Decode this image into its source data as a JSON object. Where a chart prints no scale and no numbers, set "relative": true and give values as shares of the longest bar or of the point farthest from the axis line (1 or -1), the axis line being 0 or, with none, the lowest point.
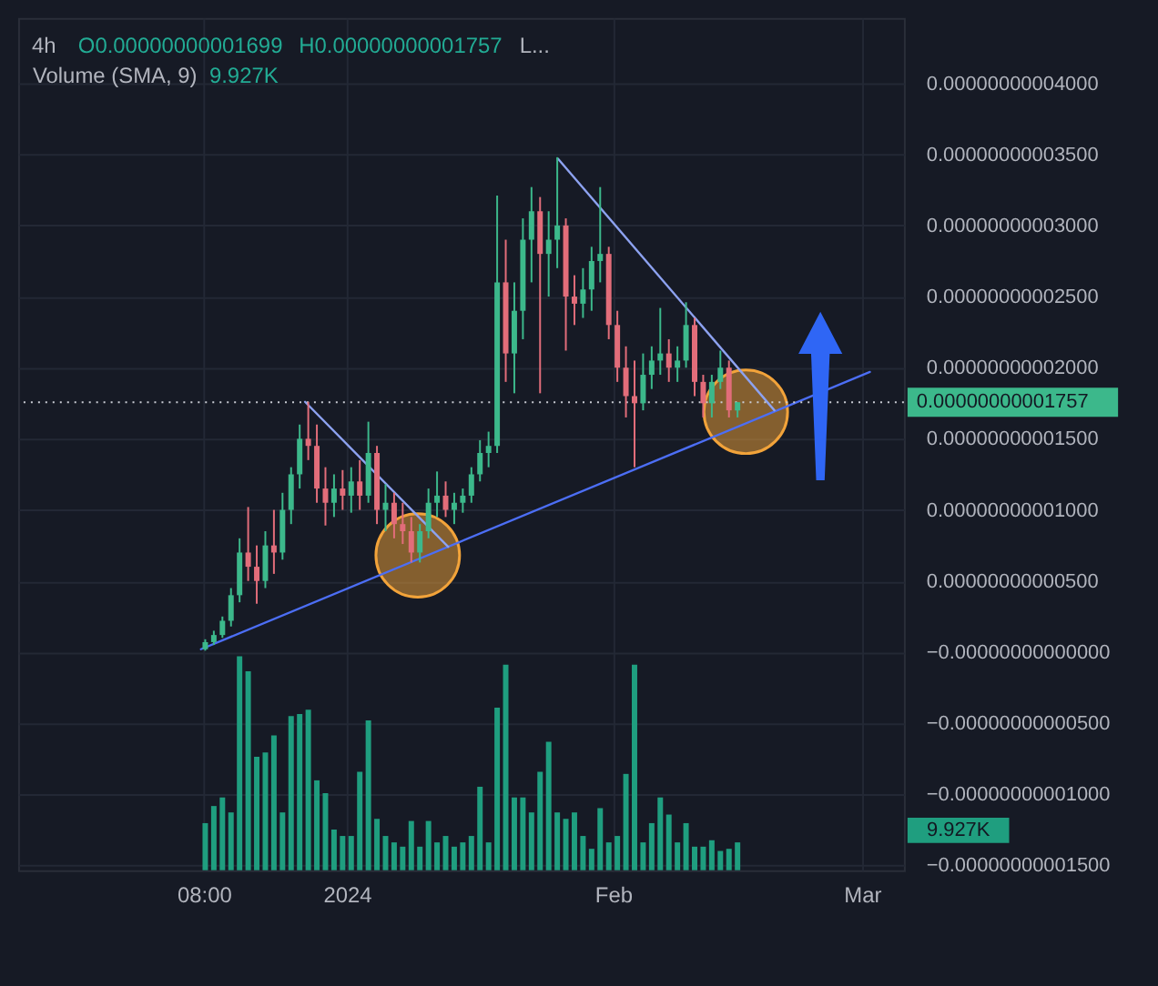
{
  "chart_data": [
    {
      "type": "candlestick",
      "title": "4h",
      "annotations": [
        "O0.00000000001699",
        "H0.00000000001757",
        "L...",
        "Volume (SMA, 9)",
        "9.927K"
      ],
      "x": [
        "2023-12-15T12:00",
        "2023-12-16T12:00",
        "2023-12-17T12:00",
        "2023-12-18T12:00",
        "2023-12-19T12:00",
        "2023-12-20T12:00",
        "2023-12-21T12:00",
        "2023-12-22T12:00",
        "2023-12-23T12:00",
        "2023-12-24T12:00",
        "2023-12-25T12:00",
        "2023-12-26T12:00",
        "2023-12-27T12:00",
        "2023-12-28T12:00",
        "2023-12-29T12:00",
        "2023-12-30T12:00",
        "2023-12-31T12:00",
        "2024-01-01T12:00",
        "2024-01-02T12:00",
        "2024-01-03T12:00",
        "2024-01-04T12:00",
        "2024-01-05T12:00",
        "2024-01-06T12:00",
        "2024-01-07T12:00",
        "2024-01-08T12:00",
        "2024-01-09T12:00",
        "2024-01-10T12:00",
        "2024-01-11T12:00",
        "2024-01-12T12:00",
        "2024-01-13T12:00",
        "2024-01-14T12:00",
        "2024-01-15T12:00",
        "2024-01-16T12:00",
        "2024-01-17T12:00",
        "2024-01-18T12:00",
        "2024-01-19T12:00",
        "2024-01-20T12:00",
        "2024-01-21T12:00",
        "2024-01-22T12:00",
        "2024-01-23T12:00",
        "2024-01-24T12:00",
        "2024-01-25T12:00",
        "2024-01-26T12:00",
        "2024-01-27T12:00",
        "2024-01-28T12:00",
        "2024-01-29T12:00",
        "2024-01-30T12:00",
        "2024-01-31T12:00",
        "2024-02-01T12:00",
        "2024-02-02T12:00",
        "2024-02-03T12:00",
        "2024-02-04T12:00",
        "2024-02-05T12:00",
        "2024-02-06T12:00",
        "2024-02-07T12:00",
        "2024-02-08T12:00",
        "2024-02-09T12:00",
        "2024-02-10T12:00",
        "2024-02-11T12:00",
        "2024-02-12T12:00",
        "2024-02-13T12:00",
        "2024-02-14T12:00",
        "2024-02-15T12:00"
      ],
      "ohlc": [
        [
          2e-13,
          9e-13,
          1e-13,
          7e-13
        ],
        [
          7e-13,
          1.5e-12,
          5e-13,
          1.2e-12
        ],
        [
          1.2e-12,
          2.5e-12,
          1e-12,
          2.2e-12
        ],
        [
          2.2e-12,
          4.5e-12,
          1.8e-12,
          4e-12
        ],
        [
          4e-12,
          8e-12,
          3.5e-12,
          7e-12
        ],
        [
          7e-12,
          1.02e-11,
          5e-12,
          6e-12
        ],
        [
          6e-12,
          7.5e-12,
          3.4e-12,
          5e-12
        ],
        [
          5e-12,
          8.5e-12,
          4.5e-12,
          7.5e-12
        ],
        [
          7.5e-12,
          1e-11,
          5.5e-12,
          7e-12
        ],
        [
          7e-12,
          1.12e-11,
          6.5e-12,
          1e-11
        ],
        [
          1e-11,
          1.3e-11,
          9e-12,
          1.25e-11
        ],
        [
          1.25e-11,
          1.6e-11,
          1.15e-11,
          1.5e-11
        ],
        [
          1.5e-11,
          1.76e-11,
          1.35e-11,
          1.45e-11
        ],
        [
          1.45e-11,
          1.6e-11,
          1.05e-11,
          1.15e-11
        ],
        [
          1.15e-11,
          1.3e-11,
          8.9e-12,
          1.05e-11
        ],
        [
          1.05e-11,
          1.25e-11,
          9.5e-12,
          1.15e-11
        ],
        [
          1.15e-11,
          1.28e-11,
          1e-11,
          1.1e-11
        ],
        [
          1.1e-11,
          1.3e-11,
          9.8e-12,
          1.2e-11
        ],
        [
          1.2e-11,
          1.35e-11,
          1e-11,
          1.1e-11
        ],
        [
          1.1e-11,
          1.62e-11,
          1.05e-11,
          1.4e-11
        ],
        [
          1.4e-11,
          1.45e-11,
          9e-12,
          1e-11
        ],
        [
          1e-11,
          1.18e-11,
          8.5e-12,
          1.05e-11
        ],
        [
          1.05e-11,
          1.12e-11,
          8e-12,
          9e-12
        ],
        [
          9e-12,
          1.05e-11,
          7.6e-12,
          8.5e-12
        ],
        [
          8.5e-12,
          9.5e-12,
          6.3e-12,
          7e-12
        ],
        [
          7e-12,
          9e-12,
          6.3e-12,
          8.5e-12
        ],
        [
          8.5e-12,
          1.15e-11,
          8e-12,
          1.05e-11
        ],
        [
          1.05e-11,
          1.27e-11,
          9.5e-12,
          1.1e-11
        ],
        [
          1.1e-11,
          1.2e-11,
          9.5e-12,
          1e-11
        ],
        [
          1e-11,
          1.12e-11,
          9e-12,
          1.05e-11
        ],
        [
          1.05e-11,
          1.15e-11,
          9.8e-12,
          1.1e-11
        ],
        [
          1.1e-11,
          1.3e-11,
          1.05e-11,
          1.25e-11
        ],
        [
          1.25e-11,
          1.49e-11,
          1.2e-11,
          1.4e-11
        ],
        [
          1.4e-11,
          1.55e-11,
          1.3e-11,
          1.45e-11
        ],
        [
          1.45e-11,
          3.21e-11,
          1.4e-11,
          2.6e-11
        ],
        [
          2.6e-11,
          2.9e-11,
          1.9e-11,
          2.1e-11
        ],
        [
          2.1e-11,
          2.6e-11,
          1.82e-11,
          2.4e-11
        ],
        [
          2.4e-11,
          3.05e-11,
          2.2e-11,
          2.9e-11
        ],
        [
          2.9e-11,
          3.27e-11,
          2.6e-11,
          3.1e-11
        ],
        [
          3.1e-11,
          3.2e-11,
          1.82e-11,
          2.8e-11
        ],
        [
          2.8e-11,
          3.1e-11,
          2.5e-11,
          2.9e-11
        ],
        [
          2.9e-11,
          3.48e-11,
          2.7e-11,
          3e-11
        ],
        [
          3e-11,
          3.05e-11,
          2.12e-11,
          2.5e-11
        ],
        [
          2.5e-11,
          2.65e-11,
          2.3e-11,
          2.45e-11
        ],
        [
          2.45e-11,
          2.7e-11,
          2.35e-11,
          2.55e-11
        ],
        [
          2.55e-11,
          2.85e-11,
          2.4e-11,
          2.75e-11
        ],
        [
          2.75e-11,
          3.27e-11,
          2.6e-11,
          2.8e-11
        ],
        [
          2.8e-11,
          2.85e-11,
          2.2e-11,
          2.3e-11
        ],
        [
          2.3e-11,
          2.4e-11,
          1.9e-11,
          2e-11
        ],
        [
          2e-11,
          2.15e-11,
          1.65e-11,
          1.8e-11
        ],
        [
          1.8e-11,
          2.05e-11,
          1.3e-11,
          1.75e-11
        ],
        [
          1.75e-11,
          2.1e-11,
          1.7e-11,
          1.95e-11
        ],
        [
          1.95e-11,
          2.15e-11,
          1.85e-11,
          2.05e-11
        ],
        [
          2.05e-11,
          2.42e-11,
          1.95e-11,
          2.1e-11
        ],
        [
          2.1e-11,
          2.2e-11,
          1.9e-11,
          2e-11
        ],
        [
          2e-11,
          2.15e-11,
          1.9e-11,
          2.05e-11
        ],
        [
          2.05e-11,
          2.46e-11,
          2e-11,
          2.3e-11
        ],
        [
          2.3e-11,
          2.35e-11,
          1.8e-11,
          1.9e-11
        ],
        [
          1.9e-11,
          1.95e-11,
          1.65e-11,
          1.75e-11
        ],
        [
          1.75e-11,
          1.95e-11,
          1.65e-11,
          1.9e-11
        ],
        [
          1.9e-11,
          2.12e-11,
          1.85e-11,
          2e-11
        ],
        [
          2e-11,
          2.05e-11,
          1.65e-11,
          1.7e-11
        ],
        [
          1.699e-11,
          1.757e-11,
          1.65e-11,
          1.757e-11
        ]
      ],
      "colors": [
        "#3cb88b",
        "#3cb88b",
        "#3cb88b",
        "#3cb88b",
        "#3cb88b",
        "#e26d7a",
        "#e26d7a",
        "#3cb88b",
        "#e26d7a",
        "#3cb88b",
        "#3cb88b",
        "#3cb88b",
        "#e26d7a",
        "#e26d7a",
        "#e26d7a",
        "#3cb88b",
        "#e26d7a",
        "#3cb88b",
        "#e26d7a",
        "#3cb88b",
        "#e26d7a",
        "#3cb88b",
        "#e26d7a",
        "#e26d7a",
        "#e26d7a",
        "#3cb88b",
        "#3cb88b",
        "#3cb88b",
        "#e26d7a",
        "#3cb88b",
        "#3cb88b",
        "#3cb88b",
        "#3cb88b",
        "#3cb88b",
        "#3cb88b",
        "#e26d7a",
        "#3cb88b",
        "#3cb88b",
        "#3cb88b",
        "#e26d7a",
        "#3cb88b",
        "#3cb88b",
        "#e26d7a",
        "#e26d7a",
        "#3cb88b",
        "#3cb88b",
        "#3cb88b",
        "#e26d7a",
        "#e26d7a",
        "#e26d7a",
        "#e26d7a",
        "#3cb88b",
        "#3cb88b",
        "#3cb88b",
        "#e26d7a",
        "#3cb88b",
        "#3cb88b",
        "#e26d7a",
        "#e26d7a",
        "#3cb88b",
        "#3cb88b",
        "#e26d7a",
        "#3cb88b"
      ],
      "xlim": [
        "2023-11-23T17:00",
        "2024-03-05T21:00"
      ],
      "xticks": [
        {
          "value": "2023-12-15T08:00",
          "label": null
        },
        {
          "value": "2024-01-01",
          "label": null
        },
        {
          "value": "2024-02-01",
          "label": null
        },
        {
          "value": "2024-03-01",
          "label": null
        }
      ],
      "tick_labels": "y",
      "ylim": [
        -1.534e-11,
        4.46e-11
      ],
      "yticks": [
        {
          "value": 4e-11,
          "label": "0.00000000004000"
        },
        {
          "value": 3.5e-11,
          "label": "0.00000000003500"
        },
        {
          "value": 3e-11,
          "label": "0.00000000003000"
        },
        {
          "value": 2.5e-11,
          "label": "0.00000000002500"
        },
        {
          "value": 2e-11,
          "label": "0.00000000002000"
        },
        {
          "value": 1.5e-11,
          "label": "0.00000000001500"
        },
        {
          "value": 1e-11,
          "label": "0.00000000001000"
        },
        {
          "value": 5e-12,
          "label": "0.00000000000500"
        },
        {
          "value": 0,
          "label": "−0.00000000000000"
        },
        {
          "value": -5e-12,
          "label": "−0.00000000000500"
        },
        {
          "value": -1e-11,
          "label": "−0.00000000001000"
        },
        {
          "value": -1.5e-11,
          "label": "−0.00000000001500"
        }
      ],
      "grid": true,
      "series": [
        {
          "type": "line",
          "color": "#4c6ef5",
          "x": [
            "2023-12-15T00:00",
            "2024-03-01T22:00"
          ],
          "values": [
            2e-13,
            1.97e-11
          ]
        },
        {
          "type": "line",
          "color": "#8da2f0",
          "x": [
            "2023-12-27T03:00",
            "2024-01-12T19:00"
          ],
          "values": [
            1.76e-11,
            7.4e-12
          ]
        },
        {
          "type": "line",
          "color": "#8da2f0",
          "x": [
            "2024-01-25T14:00",
            "2024-02-19T19:00"
          ],
          "values": [
            3.47e-11,
            1.7e-11
          ]
        },
        {
          "type": "scatter",
          "marker": "circle",
          "color": "#f2a33a",
          "x": [
            "2024-01-09T06:00",
            "2024-02-16T11:00"
          ],
          "values": [
            6.8e-12,
            1.69e-11
          ]
        }
      ],
      "ref_lines": [
        {
          "axis": "y",
          "value": 1.757e-11,
          "label": "0.00000000001757",
          "line_style": "dotted",
          "color": "#c9ccd3"
        }
      ]
    },
    {
      "type": "bar",
      "relative": true,
      "color": "#1f9e7f",
      "annotations": [
        "9.927K"
      ],
      "x": [
        "2023-12-15T12:00",
        "2023-12-16T12:00",
        "2023-12-17T12:00",
        "2023-12-18T12:00",
        "2023-12-19T12:00",
        "2023-12-20T12:00",
        "2023-12-21T12:00",
        "2023-12-22T12:00",
        "2023-12-23T12:00",
        "2023-12-24T12:00",
        "2023-12-25T12:00",
        "2023-12-26T12:00",
        "2023-12-27T12:00",
        "2023-12-28T12:00",
        "2023-12-29T12:00",
        "2023-12-30T12:00",
        "2023-12-31T12:00",
        "2024-01-01T12:00",
        "2024-01-02T12:00",
        "2024-01-03T12:00",
        "2024-01-04T12:00",
        "2024-01-05T12:00",
        "2024-01-06T12:00",
        "2024-01-07T12:00",
        "2024-01-08T12:00",
        "2024-01-09T12:00",
        "2024-01-10T12:00",
        "2024-01-11T12:00",
        "2024-01-12T12:00",
        "2024-01-13T12:00",
        "2024-01-14T12:00",
        "2024-01-15T12:00",
        "2024-01-16T12:00",
        "2024-01-17T12:00",
        "2024-01-18T12:00",
        "2024-01-19T12:00",
        "2024-01-20T12:00",
        "2024-01-21T12:00",
        "2024-01-22T12:00",
        "2024-01-23T12:00",
        "2024-01-24T12:00",
        "2024-01-25T12:00",
        "2024-01-26T12:00",
        "2024-01-27T12:00",
        "2024-01-28T12:00",
        "2024-01-29T12:00",
        "2024-01-30T12:00",
        "2024-01-31T12:00",
        "2024-02-01T12:00",
        "2024-02-02T12:00",
        "2024-02-03T12:00",
        "2024-02-04T12:00",
        "2024-02-05T12:00",
        "2024-02-06T12:00",
        "2024-02-07T12:00",
        "2024-02-08T12:00",
        "2024-02-09T12:00",
        "2024-02-10T12:00",
        "2024-02-11T12:00",
        "2024-02-12T12:00",
        "2024-02-13T12:00",
        "2024-02-14T12:00",
        "2024-02-15T12:00"
      ],
      "values": [
        0.22,
        0.3,
        0.34,
        0.27,
        1.0,
        0.93,
        0.53,
        0.55,
        0.63,
        0.27,
        0.72,
        0.73,
        0.75,
        0.42,
        0.36,
        0.19,
        0.16,
        0.16,
        0.46,
        0.7,
        0.24,
        0.16,
        0.13,
        0.11,
        0.23,
        0.11,
        0.23,
        0.13,
        0.16,
        0.11,
        0.13,
        0.16,
        0.39,
        0.13,
        0.76,
        0.96,
        0.34,
        0.34,
        0.27,
        0.46,
        0.6,
        0.27,
        0.24,
        0.27,
        0.16,
        0.1,
        0.29,
        0.13,
        0.16,
        0.45,
        0.96,
        0.13,
        0.22,
        0.34,
        0.26,
        0.13,
        0.22,
        0.11,
        0.11,
        0.14,
        0.09,
        0.1,
        0.13
      ],
      "xlim": [
        "2023-11-23T17:00",
        "2024-03-05T21:00"
      ],
      "xticks": [
        {
          "value": "2023-12-15T08:00",
          "label": "08:00"
        },
        {
          "value": "2024-01-01",
          "label": "2024"
        },
        {
          "value": "2024-02-01",
          "label": "Feb"
        },
        {
          "value": "2024-03-01",
          "label": "Mar"
        }
      ]
    }
  ]
}
